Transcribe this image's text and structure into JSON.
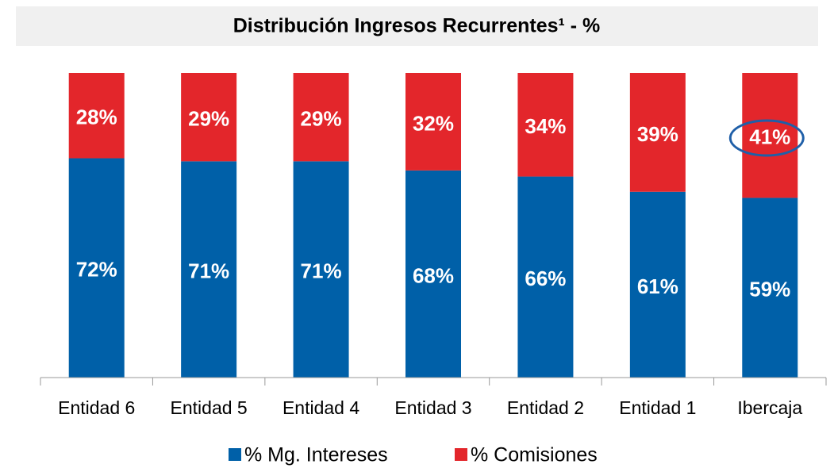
{
  "chart_data": {
    "type": "stacked_bar",
    "title": "Distribución Ingresos Recurrentes¹ - %",
    "categories": [
      "Entidad 6",
      "Entidad 5",
      "Entidad 4",
      "Entidad 3",
      "Entidad 2",
      "Entidad 1",
      "Ibercaja"
    ],
    "series": [
      {
        "name": "% Mg. Intereses",
        "color": "#0060a8",
        "values": [
          72,
          71,
          71,
          68,
          66,
          61,
          59
        ],
        "value_labels": [
          "72%",
          "71%",
          "71%",
          "68%",
          "66%",
          "61%",
          "59%"
        ]
      },
      {
        "name": "% Comisiones",
        "color": "#e3262b",
        "values": [
          28,
          29,
          29,
          32,
          34,
          39,
          41
        ],
        "value_labels": [
          "28%",
          "29%",
          "29%",
          "32%",
          "34%",
          "39%",
          "41%"
        ]
      }
    ],
    "ylim": [
      0,
      100
    ],
    "legend": "bottom"
  }
}
